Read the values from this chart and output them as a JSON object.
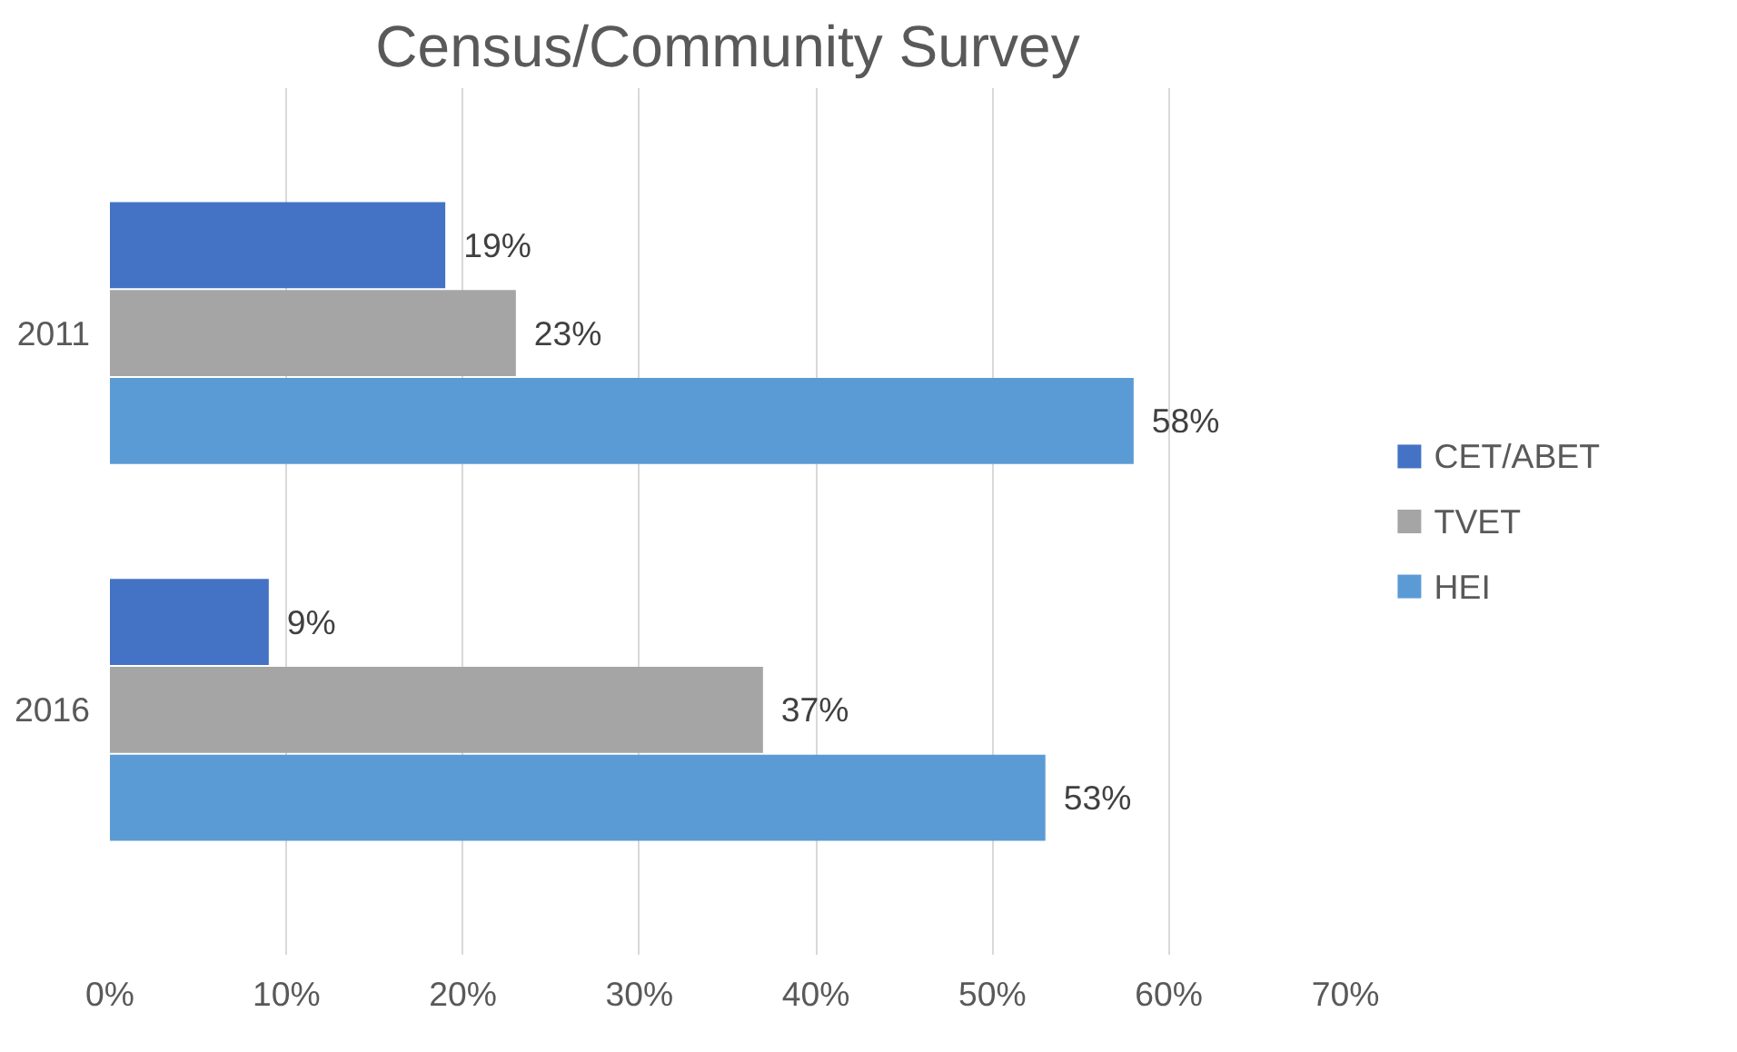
{
  "chart_data": {
    "type": "bar",
    "orientation": "horizontal",
    "title": "Census/Community Survey",
    "categories": [
      "2011",
      "2016"
    ],
    "series": [
      {
        "name": "CET/ABET",
        "color": "#4472c4",
        "values": [
          19,
          9
        ],
        "value_labels": [
          "19%",
          "9%"
        ]
      },
      {
        "name": "TVET",
        "color": "#a5a5a5",
        "values": [
          23,
          37
        ],
        "value_labels": [
          "23%",
          "37%"
        ]
      },
      {
        "name": "HEI",
        "color": "#5b9bd5",
        "values": [
          58,
          53
        ],
        "value_labels": [
          "58%",
          "53%"
        ]
      }
    ],
    "xlim": [
      0,
      70
    ],
    "xticks": [
      {
        "value": 0,
        "label": "0%"
      },
      {
        "value": 10,
        "label": "10%"
      },
      {
        "value": 20,
        "label": "20%"
      },
      {
        "value": 30,
        "label": "30%"
      },
      {
        "value": 40,
        "label": "40%"
      },
      {
        "value": 50,
        "label": "50%"
      },
      {
        "value": 60,
        "label": "60%"
      },
      {
        "value": 70,
        "label": "70%"
      }
    ],
    "grid": "x",
    "legend": "right"
  }
}
